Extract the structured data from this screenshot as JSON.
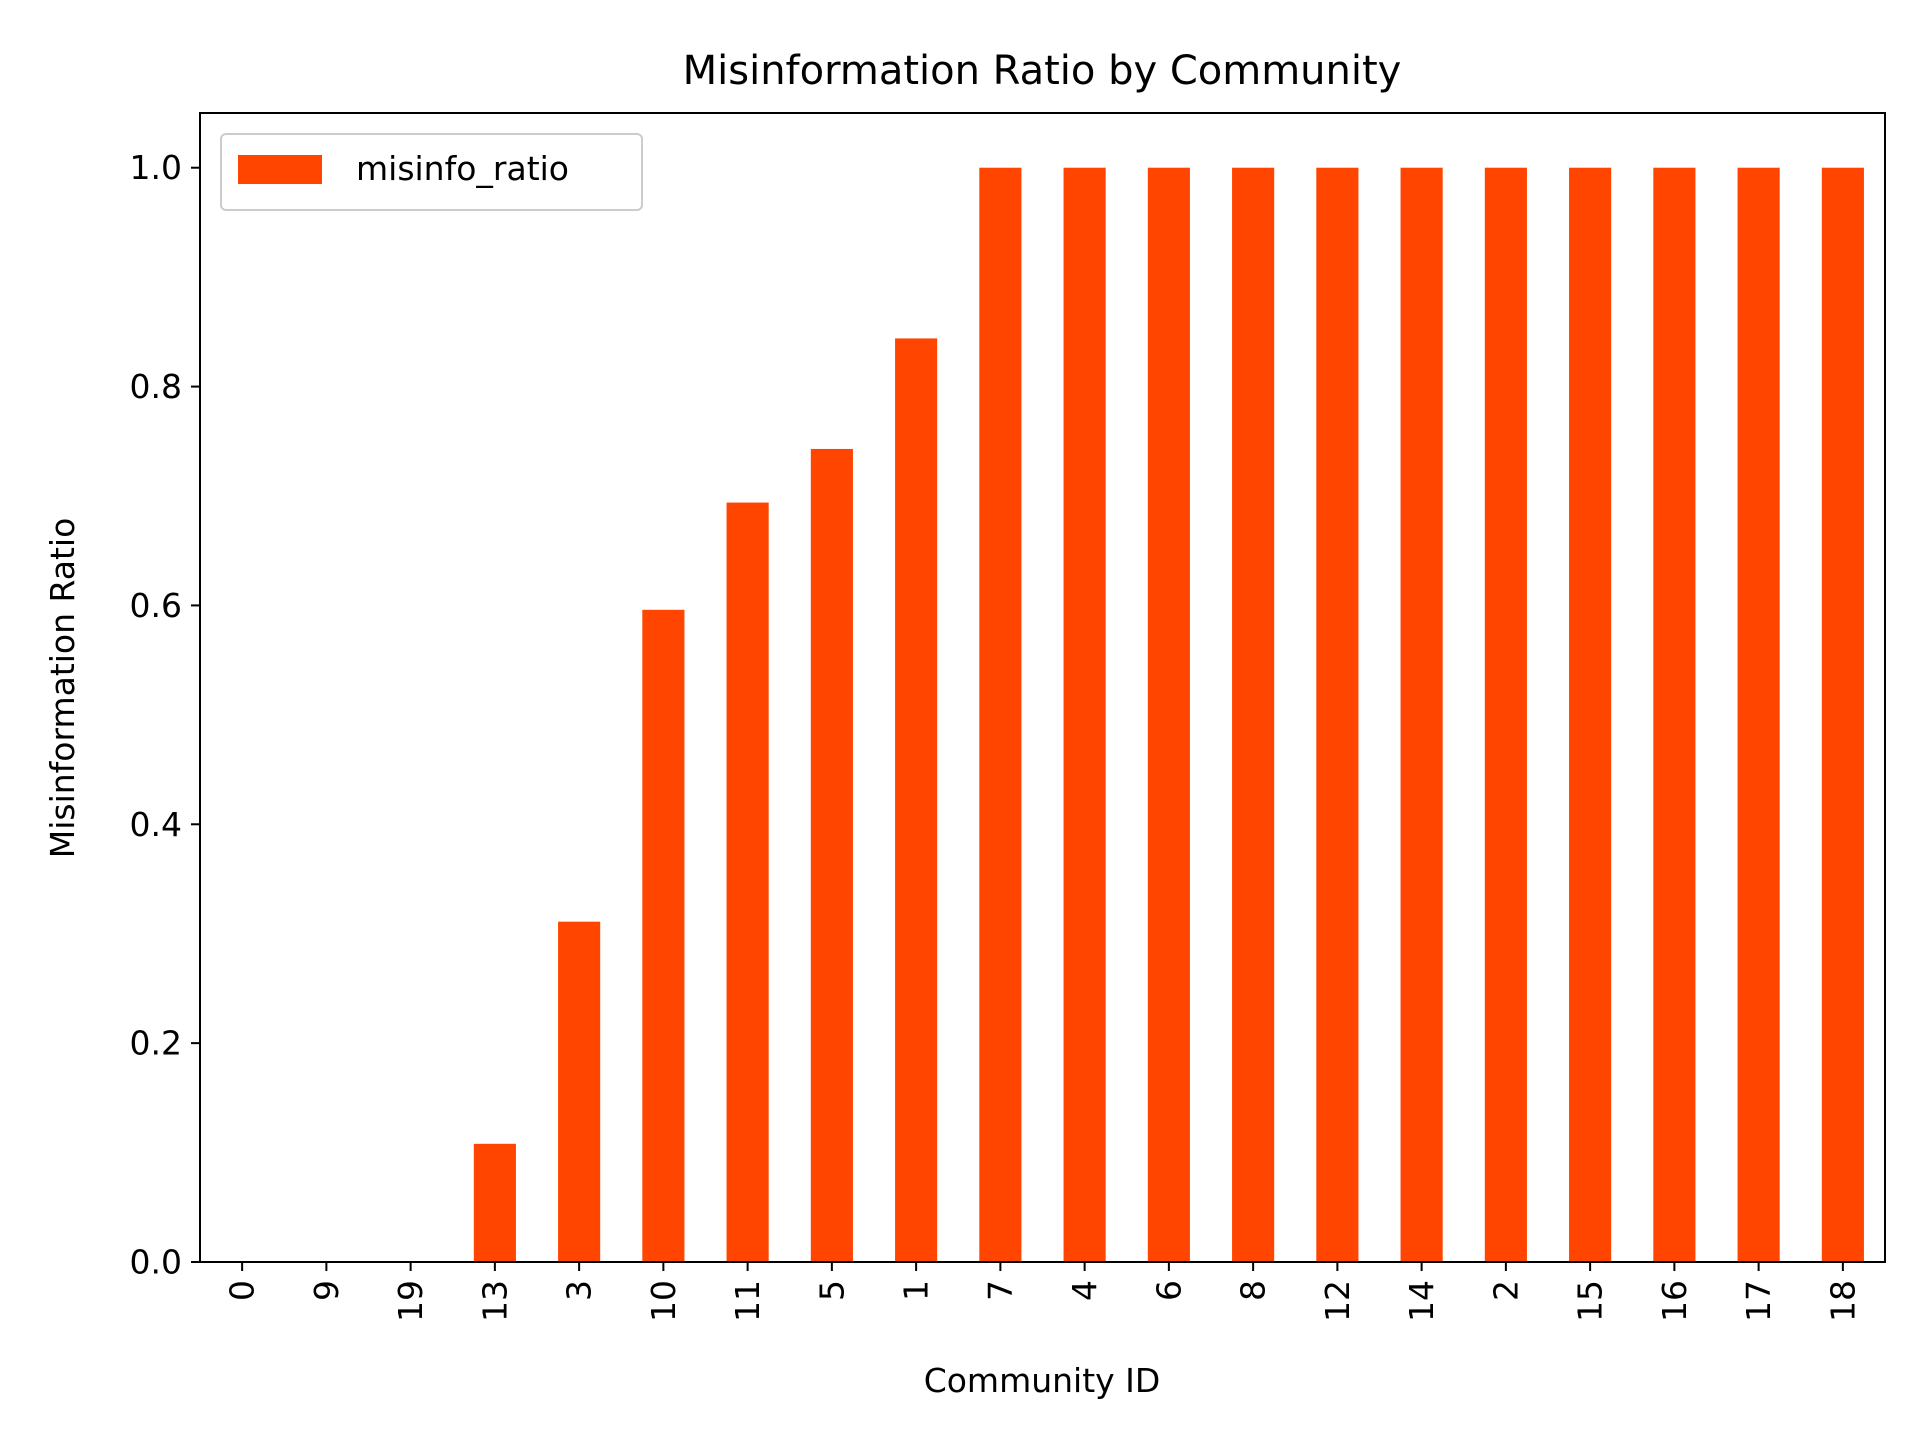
{
  "chart_data": {
    "type": "bar",
    "title": "Misinformation Ratio by Community",
    "xlabel": "Community ID",
    "ylabel": "Misinformation Ratio",
    "categories": [
      "0",
      "9",
      "19",
      "13",
      "3",
      "10",
      "11",
      "5",
      "1",
      "7",
      "4",
      "6",
      "8",
      "12",
      "14",
      "2",
      "15",
      "16",
      "17",
      "18"
    ],
    "series": [
      {
        "name": "misinfo_ratio",
        "color": "#ff4500",
        "values": [
          0.0,
          0.0,
          0.0,
          0.108,
          0.311,
          0.596,
          0.694,
          0.743,
          0.844,
          1.0,
          1.0,
          1.0,
          1.0,
          1.0,
          1.0,
          1.0,
          1.0,
          1.0,
          1.0,
          1.0
        ]
      }
    ],
    "ylim": [
      0,
      1.05
    ],
    "yticks": [
      "0.0",
      "0.2",
      "0.4",
      "0.6",
      "0.8",
      "1.0"
    ],
    "legend_position": "top-left",
    "grid": false
  }
}
